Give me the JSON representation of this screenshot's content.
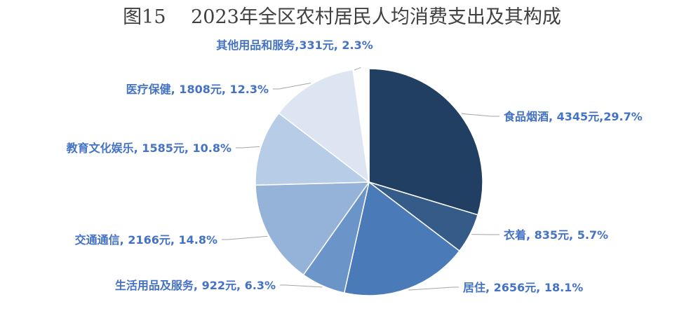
{
  "chart_data": {
    "type": "pie",
    "title": "图15　 2023年全区农村居民人均消费支出及其构成",
    "unit": "元",
    "categories": [
      "食品烟酒",
      "衣着",
      "居住",
      "生活用品及服务",
      "交通通信",
      "教育文化娱乐",
      "医疗保健",
      "其他用品和服务"
    ],
    "values": [
      4345,
      835,
      2656,
      922,
      2166,
      1585,
      1808,
      331
    ],
    "percents": [
      29.7,
      5.7,
      18.1,
      6.3,
      14.8,
      10.8,
      12.3,
      2.3
    ],
    "labels": [
      "食品烟酒, 4345元,29.7%",
      "衣着, 835元, 5.7%",
      "居住, 2656元, 18.1%",
      "生活用品及服务, 922元, 6.3%",
      "交通通信, 2166元, 14.8%",
      "教育文化娱乐, 1585元, 10.8%",
      "医疗保健, 1808元, 12.3%",
      "其他用品和服务,331元, 2.3%"
    ],
    "colors": [
      "#203f62",
      "#355b88",
      "#4a7ab8",
      "#6b95c8",
      "#95b3d9",
      "#b7cce6",
      "#dce5f1",
      "#ffffff"
    ],
    "label_color": "#4472c4",
    "legend": "none"
  }
}
